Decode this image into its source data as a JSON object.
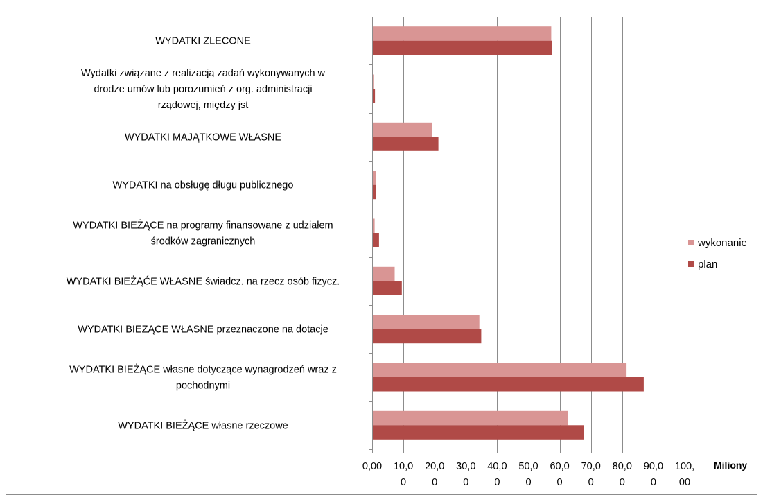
{
  "chart_data": {
    "type": "bar",
    "orientation": "horizontal",
    "categories": [
      "WYDATKI  ZLECONE",
      "Wydatki związane z realizacją zadań wykonywanych w drodze umów lub porozumień z org. administracji rządowej, między jst",
      "WYDATKI  MAJĄTKOWE WŁASNE",
      "WYDATKI  na obsługę długu publicznego",
      "WYDATKI BIEŻĄCE na programy finansowane z udziałem środków zagranicznych",
      "WYDATKI BIEŻĄĆE WŁASNE świadcz. na rzecz osób fizycz.",
      "WYDATKI  BIEZĄCE WŁASNE przeznaczone na dotacje",
      "WYDATKI  BIEŻĄCE własne dotyczące wynagrodzeń wraz z pochodnymi",
      "WYDATKI  BIEŻĄCE  własne rzeczowe"
    ],
    "category_lines": [
      [
        "WYDATKI  ZLECONE"
      ],
      [
        "Wydatki związane z realizacją zadań wykonywanych w",
        "drodze umów lub porozumień z org. administracji",
        "rządowej, między jst"
      ],
      [
        "WYDATKI  MAJĄTKOWE WŁASNE"
      ],
      [
        "WYDATKI  na obsługę długu publicznego"
      ],
      [
        "WYDATKI BIEŻĄCE na programy finansowane z udziałem",
        "środków zagranicznych"
      ],
      [
        "WYDATKI BIEŻĄĆE WŁASNE świadcz. na rzecz osób fizycz."
      ],
      [
        "WYDATKI  BIEZĄCE WŁASNE przeznaczone na dotacje"
      ],
      [
        "WYDATKI  BIEŻĄCE własne dotyczące wynagrodzeń wraz z",
        "pochodnymi"
      ],
      [
        "WYDATKI  BIEŻĄCE  własne rzeczowe"
      ]
    ],
    "series": [
      {
        "name": "wykonanie",
        "color": "#d99594",
        "values": [
          57.3,
          0.4,
          19.3,
          1.1,
          0.8,
          7.2,
          34.3,
          81.4,
          62.6
        ]
      },
      {
        "name": "plan",
        "color": "#b04a47",
        "values": [
          57.6,
          0.9,
          21.2,
          1.2,
          2.2,
          9.5,
          34.9,
          86.9,
          67.7
        ]
      }
    ],
    "xlim": [
      0,
      100
    ],
    "x_ticks": [
      [
        "0,00"
      ],
      [
        "10,0",
        "0"
      ],
      [
        "20,0",
        "0"
      ],
      [
        "30,0",
        "0"
      ],
      [
        "40,0",
        "0"
      ],
      [
        "50,0",
        "0"
      ],
      [
        "60,0",
        "0"
      ],
      [
        "70,0",
        "0"
      ],
      [
        "80,0",
        "0"
      ],
      [
        "90,0",
        "0"
      ],
      [
        "100,",
        "00"
      ]
    ],
    "unit_label": "Miliony",
    "grid": true,
    "legend_position": "right"
  }
}
